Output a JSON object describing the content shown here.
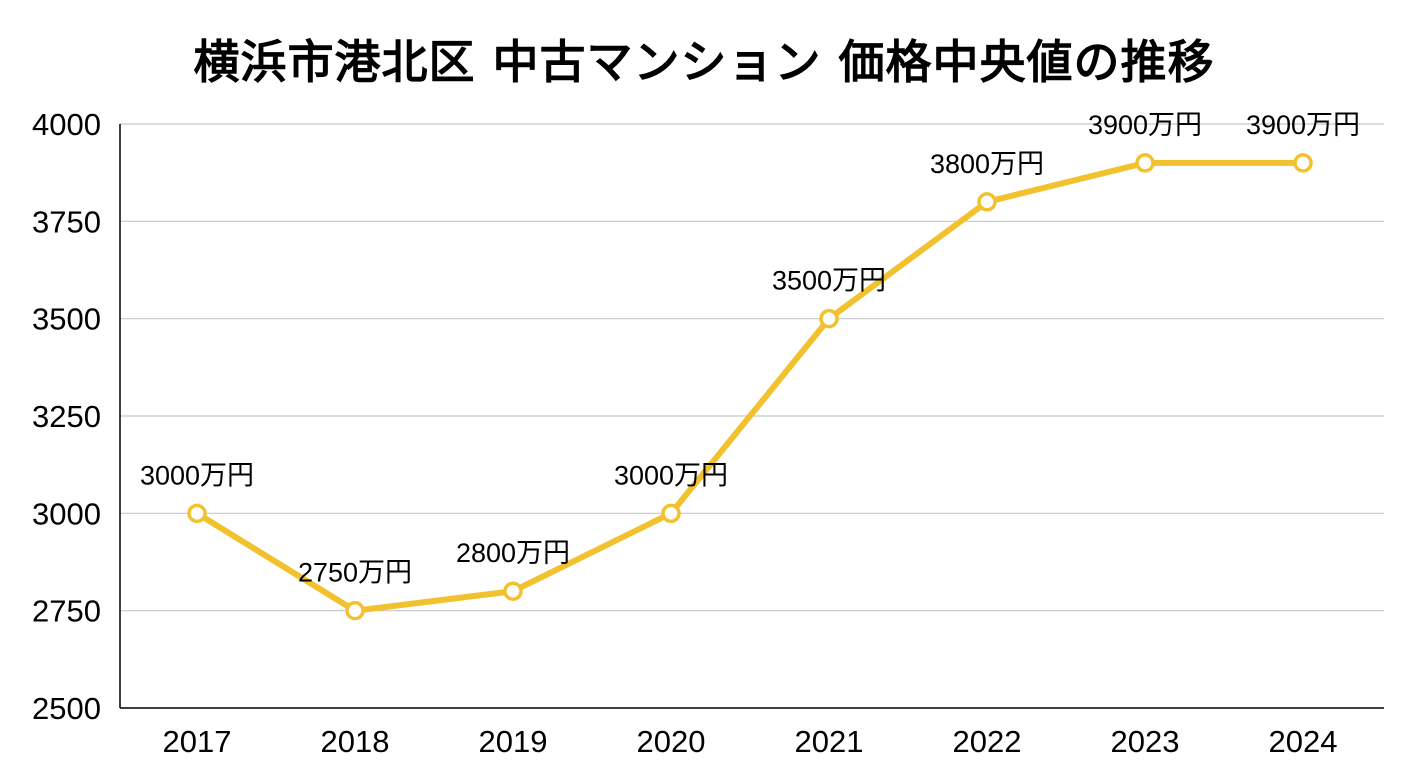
{
  "chart_data": {
    "type": "line",
    "title": "横浜市港北区 中古マンション 価格中央値の推移",
    "xlabel": "",
    "ylabel": "",
    "categories": [
      "2017",
      "2018",
      "2019",
      "2020",
      "2021",
      "2022",
      "2023",
      "2024"
    ],
    "series": [
      {
        "values": [
          3000,
          2750,
          2800,
          3000,
          3500,
          3800,
          3900,
          3900
        ],
        "data_labels": [
          "3000万円",
          "2750万円",
          "2800万円",
          "3000万円",
          "3500万円",
          "3800万円",
          "3900万円",
          "3900万円"
        ],
        "color": "#F2C12E"
      }
    ],
    "ylim": [
      2500,
      4000
    ],
    "yticks": [
      2500,
      2750,
      3000,
      3250,
      3500,
      3750,
      4000
    ],
    "grid": true,
    "legend": "none",
    "colors": {
      "line": "#F2C12E",
      "marker_fill": "#ffffff",
      "grid": "#c8c8c8",
      "axis": "#000000"
    }
  }
}
